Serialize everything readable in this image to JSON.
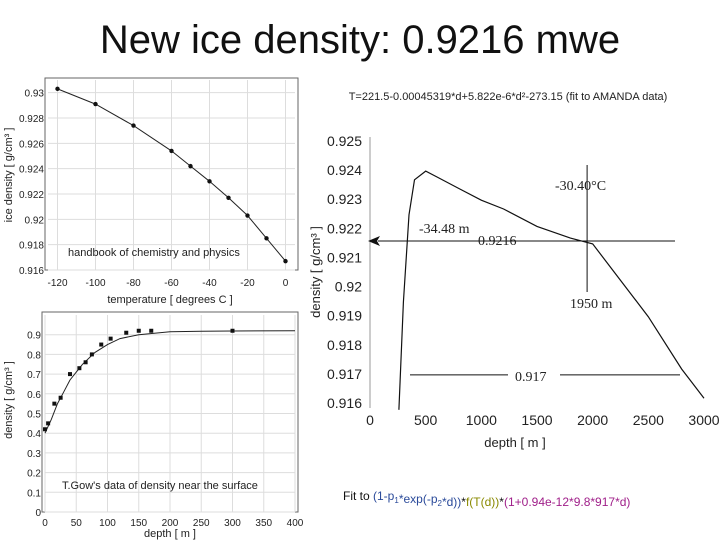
{
  "slide": {
    "title": "New ice density: 0.9216 mwe",
    "formula": "T=221.5-0.00045319*d+5.822e-6*d²-273.15 (fit to AMANDA data)",
    "fit_label": "Fit to",
    "fit_parts": [
      {
        "text": "(1-p",
        "color": "#2a4a9a"
      },
      {
        "text": "1",
        "color": "#2a4a9a",
        "sub": true
      },
      {
        "text": "*exp(-p",
        "color": "#2a4a9a"
      },
      {
        "text": "2",
        "color": "#2a4a9a",
        "sub": true
      },
      {
        "text": "*d))",
        "color": "#2a4a9a"
      },
      {
        "text": "*",
        "color": "#111111"
      },
      {
        "text": "f(T(d))",
        "color": "#8a8a00"
      },
      {
        "text": "*",
        "color": "#111111"
      },
      {
        "text": "(1+0.94e-12*9.8*917*d)",
        "color": "#a0208a"
      }
    ]
  },
  "chart_data": [
    {
      "type": "scatter",
      "xlabel": "temperature [ degrees C ]",
      "ylabel": "ice density [ g/cm³ ]",
      "xlim": [
        -125,
        5
      ],
      "ylim": [
        0.916,
        0.931
      ],
      "xticks": [
        -120,
        -100,
        -80,
        -60,
        -40,
        -20,
        0
      ],
      "yticks": [
        0.916,
        0.918,
        0.92,
        0.922,
        0.924,
        0.926,
        0.928,
        0.93
      ],
      "ytick_labels": [
        "0.916",
        "0.918",
        "0.92",
        "0.922",
        "0.924",
        "0.926",
        "0.928",
        "0.93"
      ],
      "annotation": "handbook of chemistry and physics",
      "points": {
        "x": [
          -120,
          -100,
          -80,
          -60,
          -50,
          -40,
          -30,
          -20,
          -10,
          0
        ],
        "y": [
          0.9303,
          0.9291,
          0.9274,
          0.9254,
          0.9242,
          0.923,
          0.9217,
          0.9203,
          0.9185,
          0.9167
        ]
      },
      "fit": {
        "x": [
          -120,
          -100,
          -80,
          -60,
          -50,
          -40,
          -30,
          -20,
          -10,
          0
        ],
        "y": [
          0.9303,
          0.9291,
          0.9274,
          0.9254,
          0.9242,
          0.923,
          0.9217,
          0.9203,
          0.9185,
          0.9167
        ]
      }
    },
    {
      "type": "line",
      "xlabel": "depth [ m ]",
      "ylabel": "density [ g/cm³ ]",
      "xlim": [
        0,
        400
      ],
      "ylim": [
        0.0,
        1.0
      ],
      "xticks": [
        0,
        50,
        100,
        150,
        200,
        250,
        300,
        350,
        400
      ],
      "yticks": [
        0.0,
        0.1,
        0.2,
        0.3,
        0.4,
        0.5,
        0.6,
        0.7,
        0.8,
        0.9
      ],
      "ytick_labels": [
        "0",
        "0.1",
        "0.2",
        "0.3",
        "0.4",
        "0.5",
        "0.6",
        "0.7",
        "0.8",
        "0.9"
      ],
      "annotation": "T.Gow's data of density near the surface",
      "points": {
        "x": [
          0,
          5,
          15,
          25,
          40,
          55,
          65,
          75,
          90,
          105,
          130,
          150,
          170,
          300
        ],
        "y": [
          0.42,
          0.45,
          0.55,
          0.58,
          0.7,
          0.73,
          0.76,
          0.8,
          0.85,
          0.88,
          0.91,
          0.92,
          0.92,
          0.92
        ]
      },
      "fit": {
        "x": [
          0,
          10,
          20,
          30,
          40,
          50,
          60,
          80,
          100,
          120,
          150,
          200,
          250,
          300,
          400
        ],
        "y": [
          0.4,
          0.47,
          0.55,
          0.61,
          0.67,
          0.71,
          0.75,
          0.81,
          0.85,
          0.88,
          0.9,
          0.915,
          0.918,
          0.919,
          0.92
        ]
      }
    },
    {
      "type": "line",
      "xlabel": "depth [ m ]",
      "ylabel": "density [ g/cm³ ]",
      "xlim": [
        0,
        3000
      ],
      "ylim": [
        0.916,
        0.925
      ],
      "xticks": [
        0,
        500,
        1000,
        1500,
        2000,
        2500,
        3000
      ],
      "yticks": [
        0.916,
        0.917,
        0.918,
        0.919,
        0.92,
        0.921,
        0.922,
        0.923,
        0.924,
        0.925
      ],
      "ytick_labels": [
        "0.916",
        "0.917",
        "0.918",
        "0.919",
        "0.92",
        "0.921",
        "0.922",
        "0.923",
        "0.924",
        "0.925"
      ],
      "line": {
        "x": [
          260,
          300,
          350,
          400,
          500,
          600,
          800,
          1000,
          1200,
          1500,
          1800,
          2000,
          2200,
          2500,
          2800,
          3000
        ],
        "y": [
          0.9158,
          0.9195,
          0.9225,
          0.9237,
          0.924,
          0.9238,
          0.9234,
          0.923,
          0.9227,
          0.9221,
          0.9217,
          0.9215,
          0.9205,
          0.919,
          0.9172,
          0.9162
        ]
      },
      "guides": {
        "depth": 1950,
        "density": 0.9216,
        "low_density": 0.917
      },
      "annotations": [
        "-30.40°C",
        "-34.48 m",
        "0.9216",
        "1950 m",
        "0.917"
      ]
    }
  ]
}
